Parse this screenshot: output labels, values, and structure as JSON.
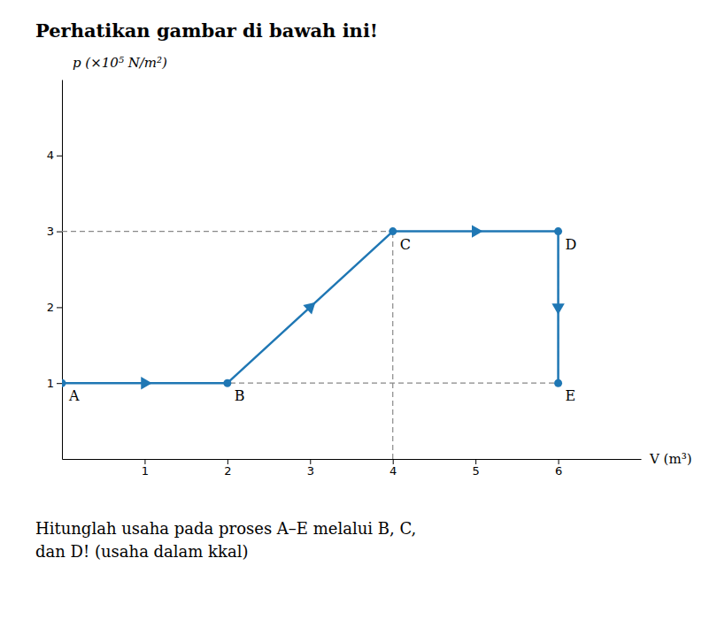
{
  "chart_data": {
    "type": "line",
    "title": "Perhatikan gambar di bawah ini!",
    "caption": "Hitunglah usaha pada proses A–E melalui B, C,\ndan D! (usaha dalam kkal)",
    "ylabel": "p (×10⁵ N/m²)",
    "xlabel": "V (m³)",
    "xlim": [
      0,
      7
    ],
    "ylim": [
      0,
      5
    ],
    "xticks": [
      1,
      2,
      3,
      4,
      5,
      6
    ],
    "yticks": [
      1,
      2,
      3,
      4
    ],
    "x": [
      0,
      2,
      4,
      6,
      6
    ],
    "values": [
      1,
      1,
      3,
      3,
      1
    ],
    "point_labels": [
      "A",
      "B",
      "C",
      "D",
      "E"
    ],
    "marker": "circle",
    "line_style": "solid",
    "dashed_lines": [
      {
        "x": [
          0,
          4
        ],
        "y": [
          3,
          3
        ],
        "line_style": "dashed"
      },
      {
        "x": [
          4,
          4
        ],
        "y": [
          0,
          3
        ],
        "line_style": "dashed"
      },
      {
        "x": [
          0,
          6
        ],
        "y": [
          1,
          1
        ],
        "line_style": "dashed"
      },
      {
        "x": [
          6,
          6
        ],
        "y": [
          1,
          3
        ],
        "line_style": "dashed"
      }
    ]
  }
}
